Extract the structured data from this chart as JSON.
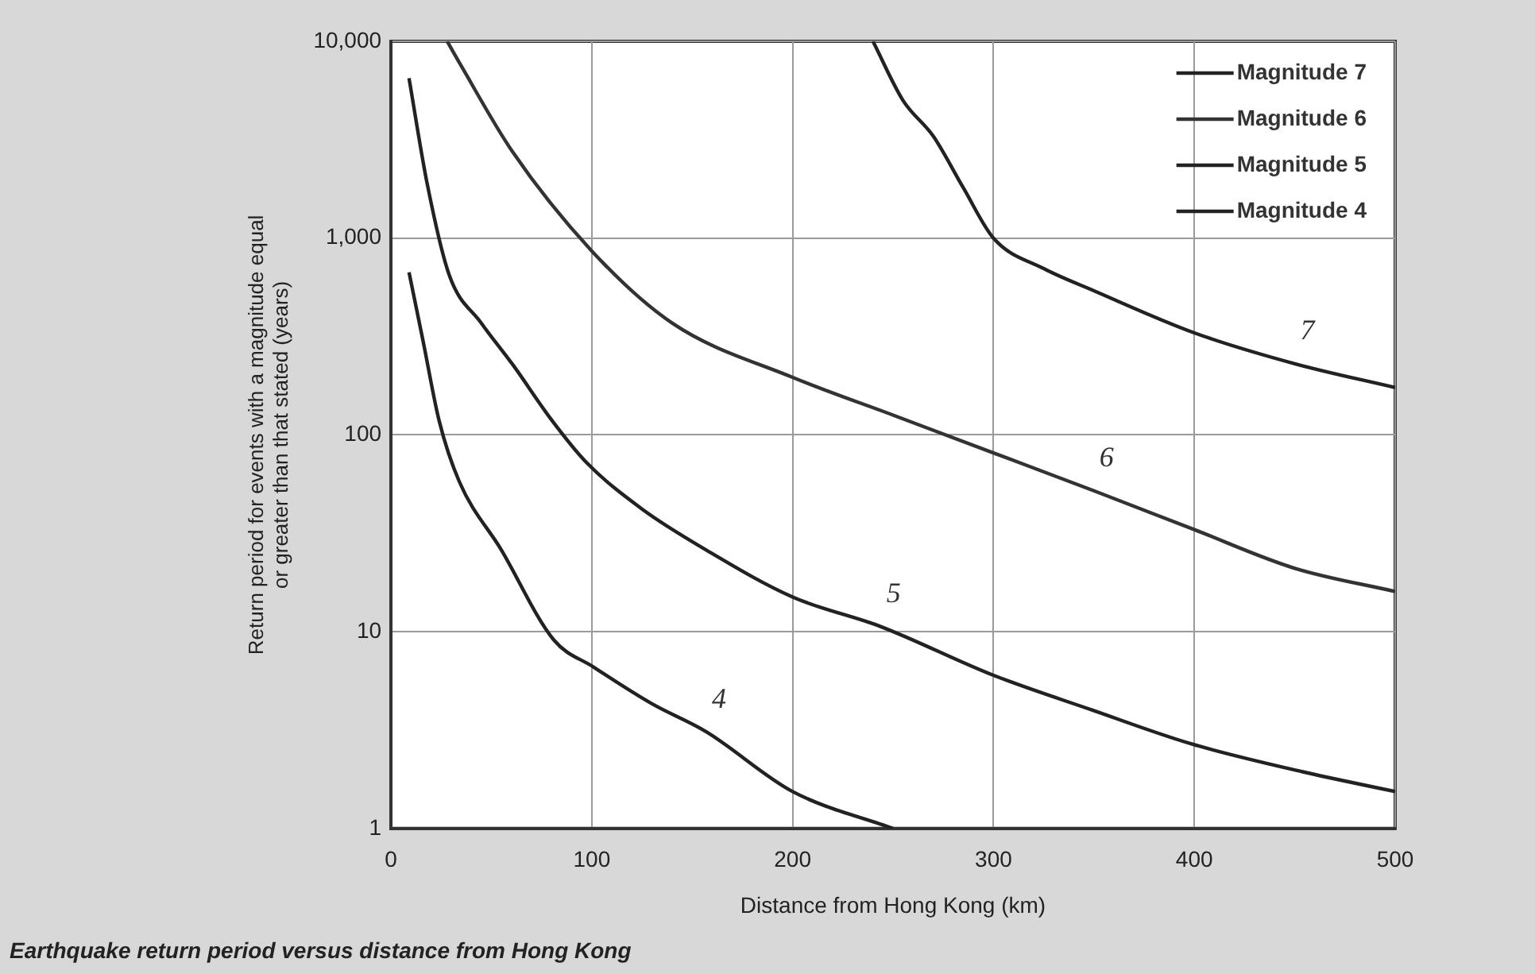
{
  "chart_data": {
    "type": "line",
    "xlabel": "Distance from Hong Kong (km)",
    "ylabel": "Return period for events with a magnitude equal or greater than that stated (years)",
    "xlim": [
      0,
      500
    ],
    "xticks": [
      0,
      100,
      200,
      300,
      400,
      500
    ],
    "ylim": [
      1,
      10000
    ],
    "yticks": [
      1,
      10,
      100,
      {
        "value": 1000,
        "label": "1,000"
      },
      {
        "value": 10000,
        "label": "10,000"
      }
    ],
    "log": "y",
    "grid": true,
    "legend": "top right",
    "marker": "none",
    "line_style": "solid",
    "series": [
      {
        "name": "Magnitude 7",
        "color": "#222222",
        "x": [
          240,
          255,
          270,
          285,
          300,
          325,
          350,
          400,
          450,
          500
        ],
        "values": [
          10000,
          5000,
          3300,
          1800,
          1000,
          700,
          540,
          330,
          230,
          174
        ]
      },
      {
        "name": "Magnitude 6",
        "color": "#333333",
        "x": [
          28,
          35,
          60,
          100,
          140,
          200,
          250,
          300,
          350,
          400,
          450,
          500
        ],
        "values": [
          10000,
          7500,
          2800,
          860,
          370,
          196,
          126,
          81,
          52,
          33,
          21,
          16
        ]
      },
      {
        "name": "Magnitude 5",
        "color": "#222222",
        "x": [
          9,
          18,
          29,
          45,
          61,
          80,
          97,
          125,
          157,
          200,
          244,
          300,
          349,
          398,
          454,
          500
        ],
        "values": [
          6500,
          1900,
          650,
          370,
          225,
          119,
          73,
          42,
          26,
          15,
          10.6,
          6,
          4,
          2.7,
          1.94,
          1.54
        ]
      },
      {
        "name": "Magnitude 4",
        "color": "#222222",
        "x": [
          9,
          16,
          24,
          34,
          55,
          81,
          101,
          130,
          157,
          200,
          250
        ],
        "values": [
          670,
          300,
          118,
          58,
          26,
          9.1,
          6.6,
          4.3,
          3.1,
          1.54,
          1
        ]
      }
    ],
    "annotations": [
      {
        "text": "7",
        "x": 450,
        "y": 230
      },
      {
        "text": "6",
        "x": 350,
        "y": 52
      },
      {
        "text": "5",
        "x": 244,
        "y": 10.6
      },
      {
        "text": "4",
        "x": 157,
        "y": 3.1
      },
      "Earthquake return period versus distance from Hong Kong"
    ]
  }
}
